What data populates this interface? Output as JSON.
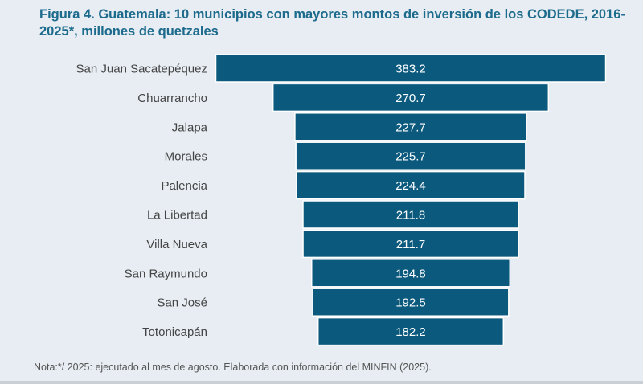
{
  "title": "Figura 4. Guatemala: 10 municipios con mayores montos de inversión de los CODEDE, 2016-2025*, millones de quetzales",
  "note": "Nota:*/ 2025: ejecutado al mes de agosto. Elaborada con información del MINFIN (2025).",
  "chart_data": {
    "type": "bar",
    "orientation": "horizontal",
    "style": "centered funnel",
    "title": "Figura 4. Guatemala: 10 municipios con mayores montos de inversión de los CODEDE, 2016-2025*, millones de quetzales",
    "categories": [
      "San Juan Sacatepéquez",
      "Chuarrancho",
      "Jalapa",
      "Morales",
      "Palencia",
      "La Libertad",
      "Villa Nueva",
      "San Raymundo",
      "San José",
      "Totonicapán"
    ],
    "values": [
      383.2,
      270.7,
      227.7,
      225.7,
      224.4,
      211.8,
      211.7,
      194.8,
      192.5,
      182.2
    ],
    "value_labels": [
      "383.2",
      "270.7",
      "227.7",
      "225.7",
      "224.4",
      "211.8",
      "211.7",
      "194.8",
      "192.5",
      "182.2"
    ],
    "bar_color": "#0b5a7e",
    "grid": false,
    "legend": "none"
  }
}
